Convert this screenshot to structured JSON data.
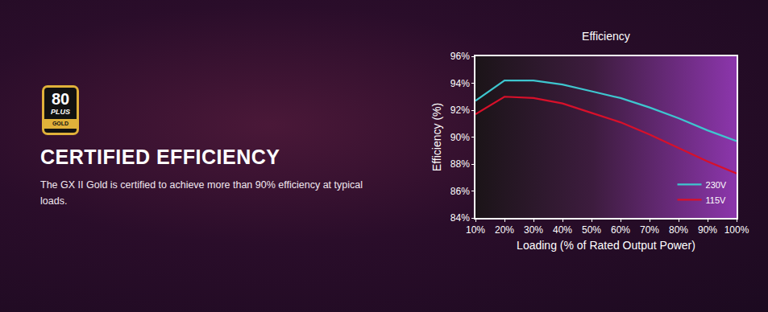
{
  "page": {
    "badge": {
      "top": "80",
      "middle": "PLUS",
      "bottom": "GOLD"
    },
    "heading": "CERTIFIED EFFICIENCY",
    "text": "The GX II Gold is certified to achieve more than 90% efficiency at typical loads."
  },
  "chart_data": {
    "type": "line",
    "title": "Efficiency",
    "x_label": "Loading (% of Rated Output Power)",
    "y_label": "Efficiency (%)",
    "x": [
      10,
      20,
      30,
      40,
      50,
      60,
      70,
      80,
      90,
      100
    ],
    "series": [
      {
        "name": "230V",
        "color": "#3ec6cf",
        "values": [
          92.7,
          94.2,
          94.2,
          93.9,
          93.4,
          92.9,
          92.2,
          91.4,
          90.5,
          89.7
        ]
      },
      {
        "name": "115V",
        "color": "#d8102a",
        "values": [
          91.7,
          93.0,
          92.9,
          92.5,
          91.8,
          91.1,
          90.2,
          89.2,
          88.2,
          87.3
        ]
      }
    ],
    "xlim": [
      10,
      100
    ],
    "xticks": [
      {
        "value": 10,
        "label": "10%"
      },
      {
        "value": 20,
        "label": "20%"
      },
      {
        "value": 30,
        "label": "30%"
      },
      {
        "value": 40,
        "label": "40%"
      },
      {
        "value": 50,
        "label": "50%"
      },
      {
        "value": 60,
        "label": "60%"
      },
      {
        "value": 70,
        "label": "70%"
      },
      {
        "value": 80,
        "label": "80%"
      },
      {
        "value": 90,
        "label": "90%"
      },
      {
        "value": 100,
        "label": "100%"
      }
    ],
    "ylim": [
      84,
      96
    ],
    "yticks": [
      {
        "value": 84,
        "label": "84%"
      },
      {
        "value": 86,
        "label": "86%"
      },
      {
        "value": 88,
        "label": "88%"
      },
      {
        "value": 90,
        "label": "90%"
      },
      {
        "value": 92,
        "label": "92%"
      },
      {
        "value": 94,
        "label": "94%"
      },
      {
        "value": 96,
        "label": "96%"
      }
    ],
    "grid": false,
    "legend": "bottom right"
  }
}
